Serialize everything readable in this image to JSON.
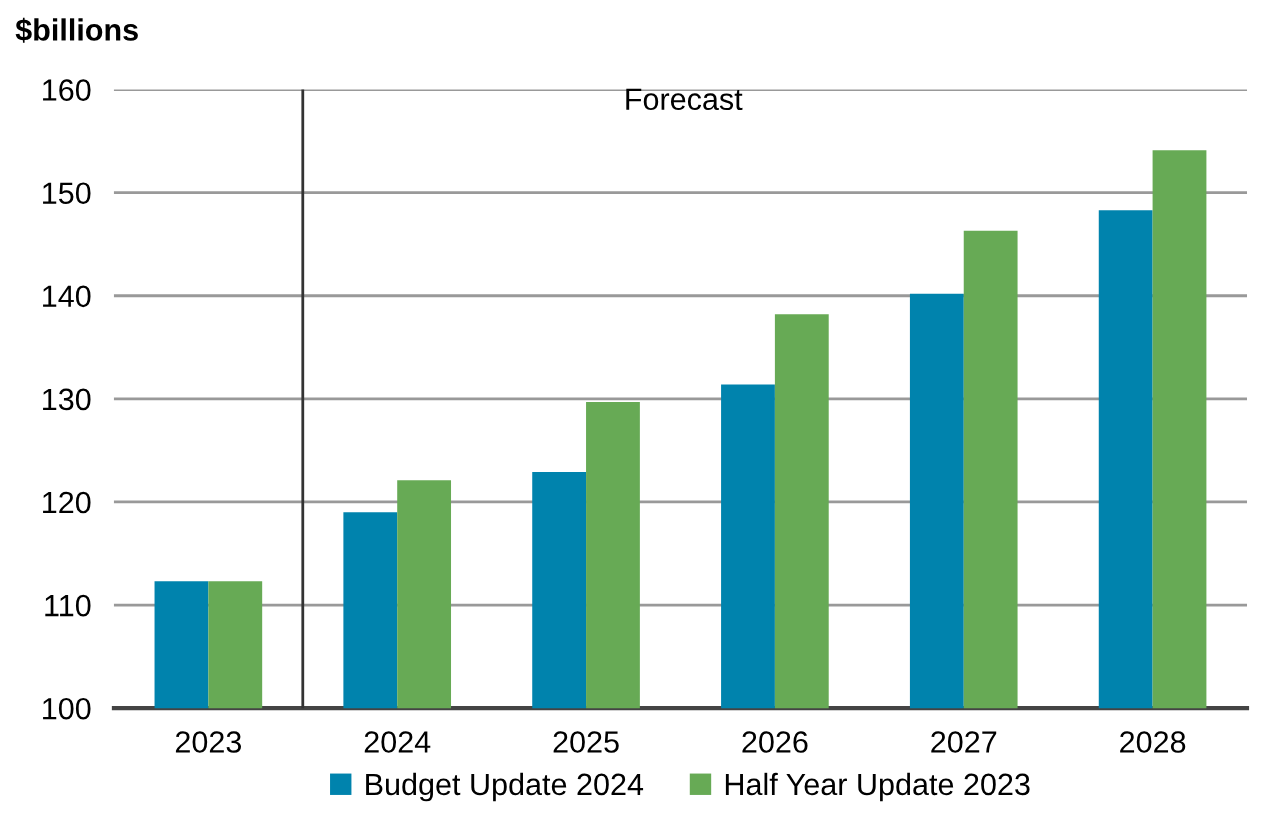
{
  "chart_data": {
    "type": "bar",
    "ylabel": "$billions",
    "categories": [
      "2023",
      "2024",
      "2025",
      "2026",
      "2027",
      "2028"
    ],
    "series": [
      {
        "name": "Budget Update 2024",
        "color": "#0083ad",
        "values": [
          112.3,
          119.0,
          122.9,
          131.4,
          140.2,
          148.3
        ]
      },
      {
        "name": "Half Year Update 2023",
        "color": "#67aa55",
        "values": [
          112.3,
          122.1,
          129.7,
          138.2,
          146.3,
          154.1
        ]
      }
    ],
    "ylim": [
      100,
      160
    ],
    "yticks": [
      100,
      110,
      120,
      130,
      140,
      150,
      160
    ],
    "grid": "y",
    "legend": "bottom",
    "ref_lines": [
      {
        "axis": "x",
        "value": "2024",
        "color": "#333333"
      }
    ],
    "annotations": [
      "Forecast"
    ]
  }
}
